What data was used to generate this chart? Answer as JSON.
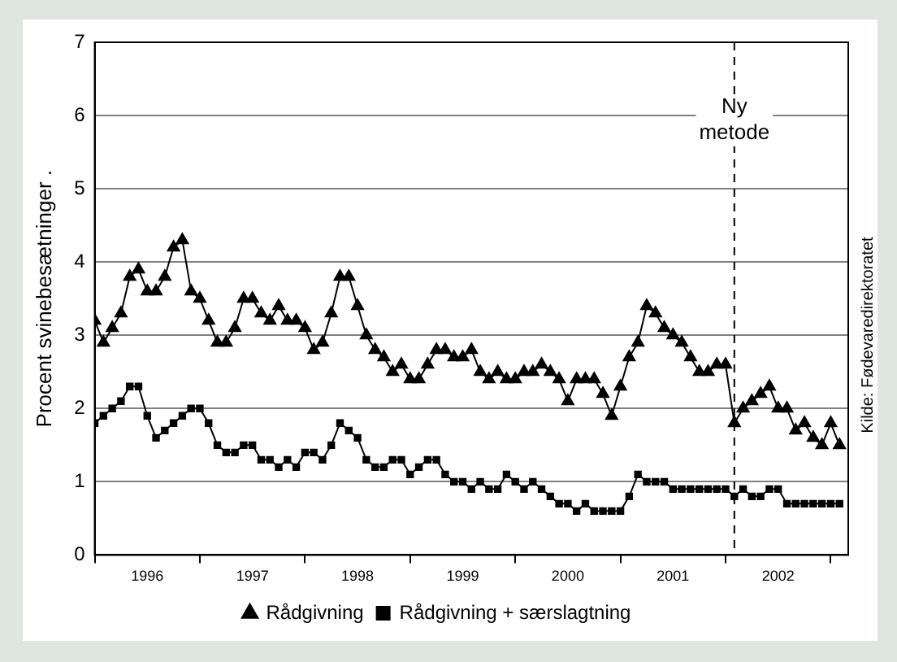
{
  "chart_data": {
    "type": "line",
    "ylabel": "Procent svinebesætninger .",
    "x": [
      "1996-01",
      "1996-02",
      "1996-03",
      "1996-04",
      "1996-05",
      "1996-06",
      "1996-07",
      "1996-08",
      "1996-09",
      "1996-10",
      "1996-11",
      "1996-12",
      "1997-01",
      "1997-02",
      "1997-03",
      "1997-04",
      "1997-05",
      "1997-06",
      "1997-07",
      "1997-08",
      "1997-09",
      "1997-10",
      "1997-11",
      "1997-12",
      "1998-01",
      "1998-02",
      "1998-03",
      "1998-04",
      "1998-05",
      "1998-06",
      "1998-07",
      "1998-08",
      "1998-09",
      "1998-10",
      "1998-11",
      "1998-12",
      "1999-01",
      "1999-02",
      "1999-03",
      "1999-04",
      "1999-05",
      "1999-06",
      "1999-07",
      "1999-08",
      "1999-09",
      "1999-10",
      "1999-11",
      "1999-12",
      "2000-01",
      "2000-02",
      "2000-03",
      "2000-04",
      "2000-05",
      "2000-06",
      "2000-07",
      "2000-08",
      "2000-09",
      "2000-10",
      "2000-11",
      "2000-12",
      "2001-01",
      "2001-02",
      "2001-03",
      "2001-04",
      "2001-05",
      "2001-06",
      "2001-07",
      "2001-08",
      "2001-09",
      "2001-10",
      "2001-11",
      "2001-12",
      "2002-01",
      "2002-02",
      "2002-03",
      "2002-04",
      "2002-05",
      "2002-06",
      "2002-07",
      "2002-08",
      "2002-09",
      "2002-10",
      "2002-11",
      "2002-12",
      "2003-01",
      "2003-02"
    ],
    "series": [
      {
        "name": "Rådgivning",
        "color": "#000000",
        "marker": "triangle",
        "values": [
          3.2,
          2.9,
          3.1,
          3.3,
          3.8,
          3.9,
          3.6,
          3.6,
          3.8,
          4.2,
          4.3,
          3.6,
          3.5,
          3.2,
          2.9,
          2.9,
          3.1,
          3.5,
          3.5,
          3.3,
          3.2,
          3.4,
          3.2,
          3.2,
          3.1,
          2.8,
          2.9,
          3.3,
          3.8,
          3.8,
          3.4,
          3.0,
          2.8,
          2.7,
          2.5,
          2.6,
          2.4,
          2.4,
          2.6,
          2.8,
          2.8,
          2.7,
          2.7,
          2.8,
          2.5,
          2.4,
          2.5,
          2.4,
          2.4,
          2.5,
          2.5,
          2.6,
          2.5,
          2.4,
          2.1,
          2.4,
          2.4,
          2.4,
          2.2,
          1.9,
          2.3,
          2.7,
          2.9,
          3.4,
          3.3,
          3.1,
          3.0,
          2.9,
          2.7,
          2.5,
          2.5,
          2.6,
          2.6,
          1.8,
          2.0,
          2.1,
          2.2,
          2.3,
          2.0,
          2.0,
          1.7,
          1.8,
          1.6,
          1.5,
          1.8,
          1.5
        ]
      },
      {
        "name": "Rådgivning + særslagtning",
        "color": "#000000",
        "marker": "square",
        "values": [
          1.8,
          1.9,
          2.0,
          2.1,
          2.3,
          2.3,
          1.9,
          1.6,
          1.7,
          1.8,
          1.9,
          2.0,
          2.0,
          1.8,
          1.5,
          1.4,
          1.4,
          1.5,
          1.5,
          1.3,
          1.3,
          1.2,
          1.3,
          1.2,
          1.4,
          1.4,
          1.3,
          1.5,
          1.8,
          1.7,
          1.6,
          1.3,
          1.2,
          1.2,
          1.3,
          1.3,
          1.1,
          1.2,
          1.3,
          1.3,
          1.1,
          1.0,
          1.0,
          0.9,
          1.0,
          0.9,
          0.9,
          1.1,
          1.0,
          0.9,
          1.0,
          0.9,
          0.8,
          0.7,
          0.7,
          0.6,
          0.7,
          0.6,
          0.6,
          0.6,
          0.6,
          0.8,
          1.1,
          1.0,
          1.0,
          1.0,
          0.9,
          0.9,
          0.9,
          0.9,
          0.9,
          0.9,
          0.9,
          0.8,
          0.9,
          0.8,
          0.8,
          0.9,
          0.9,
          0.7,
          0.7,
          0.7,
          0.7,
          0.7,
          0.7,
          0.7
        ]
      }
    ],
    "xlim": [
      "1996-01",
      "2003-03"
    ],
    "xticks": [
      {
        "value": "1996-01",
        "label": null
      },
      {
        "value": "1996-07",
        "label": "1996"
      },
      {
        "value": "1997-01",
        "label": null
      },
      {
        "value": "1997-07",
        "label": "1997"
      },
      {
        "value": "1998-01",
        "label": null
      },
      {
        "value": "1998-07",
        "label": "1998"
      },
      {
        "value": "1999-01",
        "label": null
      },
      {
        "value": "1999-07",
        "label": "1999"
      },
      {
        "value": "2000-01",
        "label": null
      },
      {
        "value": "2000-07",
        "label": "2000"
      },
      {
        "value": "2001-01",
        "label": null
      },
      {
        "value": "2001-07",
        "label": "2001"
      },
      {
        "value": "2002-01",
        "label": null
      },
      {
        "value": "2002-07",
        "label": "2002"
      },
      {
        "value": "2003-01",
        "label": null
      }
    ],
    "ylim": [
      0,
      7
    ],
    "yticks": [
      0,
      1,
      2,
      3,
      4,
      5,
      6,
      7
    ],
    "grid": "y",
    "legend": "bottom",
    "line_style": "solid",
    "ref_lines": [
      {
        "axis": "x",
        "value": "2002-02",
        "label": "Ny metode",
        "line_style": "dashed",
        "color": "#000000"
      }
    ],
    "annotations": [
      "Kilde: Fødevaredirektoratet"
    ]
  }
}
